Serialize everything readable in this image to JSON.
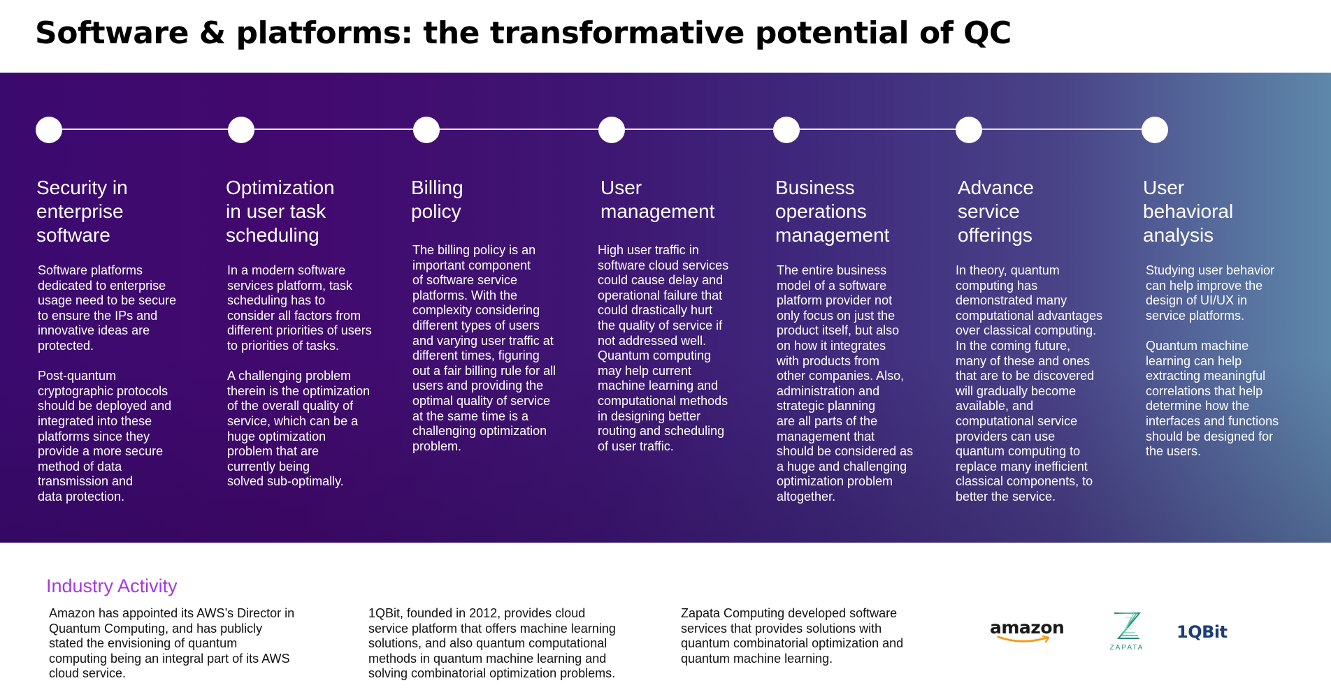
{
  "title": "Software & platforms: the transformative potential of QC",
  "columns": [
    {
      "title": [
        "Security in",
        "enterprise",
        "software"
      ],
      "paragraphs": [
        [
          "Software platforms",
          "dedicated to enterprise",
          "usage need to be secure",
          "to ensure the IPs and",
          "innovative ideas are",
          "protected."
        ],
        [
          "Post-quantum",
          "cryptographic protocols",
          "should be deployed and",
          "integrated into these",
          "platforms since they",
          "provide a more secure",
          "method of data",
          "transmission and",
          "data protection."
        ]
      ]
    },
    {
      "title": [
        "Optimization",
        "in user task",
        "scheduling"
      ],
      "paragraphs": [
        [
          "In a modern software",
          "services platform, task",
          "scheduling has to",
          "consider all factors from",
          "different priorities of users",
          "to priorities of tasks."
        ],
        [
          "A challenging problem",
          "therein is the optimization",
          "of the overall quality of",
          "service, which can be a",
          "huge optimization",
          "problem that are",
          "currently being",
          "solved sub-optimally."
        ]
      ]
    },
    {
      "title": [
        "Billing",
        "policy"
      ],
      "paragraphs": [
        [
          "The billing policy is an",
          "important component",
          "of software service",
          "platforms. With the",
          "complexity considering",
          "different types of users",
          "and varying user traffic at",
          "different times, figuring",
          "out a fair billing rule for all",
          "users and providing the",
          "optimal quality of service",
          "at the same time is a",
          "challenging optimization",
          "problem."
        ]
      ]
    },
    {
      "title": [
        "User",
        "management"
      ],
      "paragraphs": [
        [
          "High user traffic in",
          "software cloud services",
          "could cause delay and",
          "operational failure that",
          "could drastically hurt",
          "the quality of service if",
          "not addressed well.",
          "Quantum computing",
          "may help current",
          "machine learning and",
          "computational methods",
          "in designing better",
          "routing and scheduling",
          "of user traffic."
        ]
      ]
    },
    {
      "title": [
        "Business",
        "operations",
        "management"
      ],
      "paragraphs": [
        [
          "The entire business",
          "model of a software",
          "platform provider not",
          "only focus on just the",
          "product itself, but also",
          "on how it integrates",
          "with products from",
          "other companies. Also,",
          "administration and",
          "strategic planning",
          "are all parts of the",
          "management that",
          "should be considered as",
          "a huge and challenging",
          "optimization problem",
          "altogether."
        ]
      ]
    },
    {
      "title": [
        "Advance",
        "service",
        "offerings"
      ],
      "paragraphs": [
        [
          "In theory, quantum",
          "computing has",
          "demonstrated many",
          "computational advantages",
          "over classical computing.",
          "In the coming future,",
          "many of these and ones",
          "that are to be discovered",
          "will gradually become",
          "available, and",
          "computational service",
          "providers can use",
          "quantum computing to",
          "replace many inefficient",
          "classical components, to",
          "better the service."
        ]
      ]
    },
    {
      "title": [
        "User",
        "behavioral",
        "analysis"
      ],
      "paragraphs": [
        [
          "Studying user behavior",
          "can help improve the",
          "design of UI/UX in",
          "service platforms."
        ],
        [
          "Quantum machine",
          "learning can help",
          "extracting meaningful",
          "correlations that help",
          "determine how the",
          "interfaces and functions",
          "should be designed for",
          "the users."
        ]
      ]
    }
  ],
  "industry": {
    "heading": "Industry Activity",
    "items": [
      [
        "Amazon has appointed its AWS’s Director in",
        "Quantum Computing, and has publicly",
        "stated the envisioning of quantum",
        "computing being an integral part of its AWS",
        "cloud service."
      ],
      [
        "1QBit, founded in 2012, provides cloud",
        "service platform that offers machine learning",
        "solutions, and also quantum computational",
        "methods in quantum machine learning and",
        "solving combinatorial optimization problems."
      ],
      [
        "Zapata Computing developed software",
        "services that provides solutions with",
        "quantum combinatorial optimization and",
        "quantum machine learning."
      ]
    ],
    "logos": {
      "amazon": "amazon",
      "zapata": "ZAPATA",
      "oneqbit": "1QBit"
    }
  },
  "colors": {
    "accent_heading": "#a23ae0",
    "amazon_smile": "#f29b1d",
    "zapata": "#2a8a78",
    "oneqbit": "#1d3c78"
  }
}
